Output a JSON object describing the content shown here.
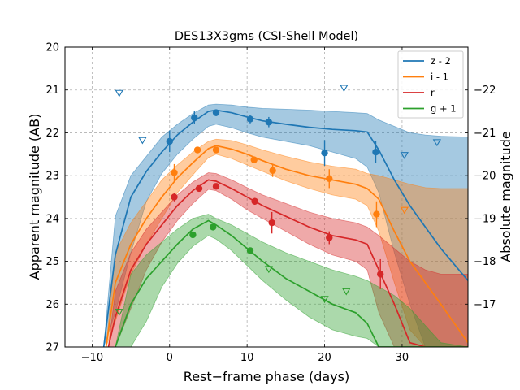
{
  "chart_data": {
    "type": "line",
    "title": "DES13X3gms (CSI-Shell Model)",
    "xlabel": "Rest−frame phase (days)",
    "ylabel": "Apparent magnitude (AB)",
    "ylabel_right": "Absolute magnitude",
    "xlim": [
      -13.5,
      38.5
    ],
    "ylim": [
      27,
      20
    ],
    "y_inverted": true,
    "right_ylim": [
      -16.0,
      -23.0
    ],
    "x_ticks": [
      -10,
      0,
      10,
      20,
      30
    ],
    "y_ticks": [
      20,
      21,
      22,
      23,
      24,
      25,
      26,
      27
    ],
    "right_y_ticks": [
      -22,
      -21,
      -20,
      -19,
      -18,
      -17
    ],
    "grid": true,
    "legend_position": "top-right",
    "series": [
      {
        "name": "z - 2",
        "color": "#1f77b4",
        "model_x": [
          -8.5,
          -7,
          -5,
          -3,
          -1,
          1,
          3,
          5,
          6,
          8,
          10,
          12,
          15,
          18,
          21,
          24,
          25.5,
          27,
          29,
          31,
          33,
          35,
          38.5
        ],
        "model_y": [
          27.0,
          24.85,
          23.5,
          22.9,
          22.45,
          22.05,
          21.75,
          21.5,
          21.47,
          21.53,
          21.63,
          21.72,
          21.8,
          21.87,
          21.92,
          21.95,
          21.98,
          22.4,
          23.1,
          23.7,
          24.2,
          24.7,
          25.45
        ],
        "band_upper": [
          27.0,
          23.95,
          23.0,
          22.55,
          22.1,
          21.8,
          21.55,
          21.35,
          21.33,
          21.35,
          21.4,
          21.43,
          21.45,
          21.47,
          21.5,
          21.53,
          21.55,
          21.7,
          21.85,
          22.0,
          22.05,
          22.08,
          22.1
        ],
        "band_lower": [
          27.0,
          26.2,
          24.8,
          23.6,
          22.95,
          22.5,
          22.15,
          21.85,
          21.8,
          21.88,
          22.0,
          22.1,
          22.2,
          22.3,
          22.45,
          22.6,
          22.8,
          23.4,
          24.8,
          26.0,
          27.0,
          27.0,
          27.0
        ],
        "points": [
          {
            "x": 0.0,
            "y": 22.2,
            "err": 0.25
          },
          {
            "x": 3.2,
            "y": 21.65,
            "err": 0.15
          },
          {
            "x": 6.0,
            "y": 21.53,
            "err": 0.08
          },
          {
            "x": 10.4,
            "y": 21.68,
            "err": 0.1
          },
          {
            "x": 12.8,
            "y": 21.75,
            "err": 0.12
          },
          {
            "x": 20.0,
            "y": 22.47,
            "err": 0.3
          },
          {
            "x": 26.6,
            "y": 22.45,
            "err": 0.25
          }
        ],
        "upper_limits": [
          {
            "x": -6.5,
            "y": 21.07
          },
          {
            "x": -3.5,
            "y": 22.17
          },
          {
            "x": 22.5,
            "y": 20.95
          },
          {
            "x": 30.3,
            "y": 22.52
          },
          {
            "x": 34.5,
            "y": 22.22
          }
        ]
      },
      {
        "name": "i - 1",
        "color": "#ff7f0e",
        "model_x": [
          -8.2,
          -7,
          -5,
          -3,
          -1,
          1,
          3,
          5,
          6,
          8,
          10,
          12,
          15,
          18,
          21,
          24,
          25.5,
          27,
          29,
          31,
          33,
          35,
          38.5
        ],
        "model_y": [
          27.0,
          25.5,
          24.6,
          24.0,
          23.5,
          23.05,
          22.7,
          22.37,
          22.3,
          22.38,
          22.5,
          22.65,
          22.85,
          23.0,
          23.1,
          23.2,
          23.3,
          23.55,
          24.3,
          25.0,
          25.5,
          26.0,
          26.9
        ],
        "band_upper": [
          27.0,
          24.8,
          24.1,
          23.6,
          23.1,
          22.75,
          22.45,
          22.2,
          22.15,
          22.18,
          22.28,
          22.4,
          22.55,
          22.68,
          22.78,
          22.85,
          22.95,
          23.0,
          23.1,
          23.2,
          23.28,
          23.3,
          23.3
        ],
        "band_lower": [
          27.0,
          26.4,
          25.3,
          24.6,
          24.0,
          23.4,
          22.98,
          22.58,
          22.5,
          22.6,
          22.75,
          22.9,
          23.12,
          23.3,
          23.45,
          23.55,
          23.7,
          24.3,
          25.5,
          26.6,
          27.0,
          27.0,
          27.0
        ],
        "points": [
          {
            "x": 0.6,
            "y": 22.93,
            "err": 0.2
          },
          {
            "x": 3.6,
            "y": 22.4,
            "err": 0.06
          },
          {
            "x": 6.0,
            "y": 22.4,
            "err": 0.06
          },
          {
            "x": 10.9,
            "y": 22.63,
            "err": 0.08
          },
          {
            "x": 13.3,
            "y": 22.88,
            "err": 0.15
          },
          {
            "x": 20.6,
            "y": 23.07,
            "err": 0.22
          },
          {
            "x": 26.7,
            "y": 23.9,
            "err": 0.3
          }
        ],
        "upper_limits": [
          {
            "x": 30.3,
            "y": 23.8
          }
        ]
      },
      {
        "name": "r",
        "color": "#d62728",
        "model_x": [
          -7.9,
          -7,
          -5,
          -3,
          -1,
          1,
          3,
          5,
          6,
          8,
          10,
          12,
          15,
          18,
          21,
          24,
          25.5,
          27,
          29,
          31,
          33,
          35,
          38.5
        ],
        "model_y": [
          27.0,
          26.3,
          25.2,
          24.6,
          24.15,
          23.7,
          23.35,
          23.1,
          23.13,
          23.3,
          23.5,
          23.7,
          23.95,
          24.2,
          24.4,
          24.5,
          24.6,
          25.2,
          26.0,
          26.9,
          27.0,
          27.0,
          27.0
        ],
        "band_upper": [
          27.0,
          25.7,
          24.8,
          24.25,
          23.85,
          23.45,
          23.15,
          22.93,
          22.95,
          23.1,
          23.28,
          23.45,
          23.65,
          23.85,
          24.0,
          24.1,
          24.2,
          24.4,
          24.7,
          25.0,
          25.2,
          25.3,
          25.3
        ],
        "band_lower": [
          27.0,
          27.0,
          26.1,
          25.2,
          24.55,
          24.05,
          23.65,
          23.32,
          23.35,
          23.55,
          23.8,
          24.0,
          24.3,
          24.6,
          24.85,
          25.0,
          25.2,
          26.2,
          27.0,
          27.0,
          27.0,
          27.0,
          27.0
        ],
        "points": [
          {
            "x": 0.6,
            "y": 23.5,
            "err": 0.1
          },
          {
            "x": 3.8,
            "y": 23.3,
            "err": 0.06
          },
          {
            "x": 6.0,
            "y": 23.25,
            "err": 0.06
          },
          {
            "x": 11.0,
            "y": 23.6,
            "err": 0.08
          },
          {
            "x": 13.2,
            "y": 24.1,
            "err": 0.25
          },
          {
            "x": 20.6,
            "y": 24.45,
            "err": 0.15
          },
          {
            "x": 27.2,
            "y": 25.3,
            "err": 0.35
          }
        ],
        "upper_limits": []
      },
      {
        "name": "g + 1",
        "color": "#2ca02c",
        "model_x": [
          -7.0,
          -5,
          -3,
          -1,
          1,
          3,
          5,
          6,
          8,
          10,
          12,
          15,
          18,
          21,
          24,
          25.5,
          27,
          29,
          31,
          33,
          35,
          38.5
        ],
        "model_y": [
          27.0,
          26.0,
          25.4,
          25.0,
          24.6,
          24.25,
          24.05,
          24.15,
          24.4,
          24.7,
          25.0,
          25.4,
          25.7,
          26.0,
          26.2,
          26.45,
          27.0,
          27.0,
          27.0,
          27.0,
          27.0,
          27.0
        ],
        "band_upper": [
          27.0,
          25.3,
          24.85,
          24.55,
          24.25,
          24.0,
          23.9,
          24.0,
          24.15,
          24.35,
          24.55,
          24.8,
          25.0,
          25.2,
          25.35,
          25.45,
          25.6,
          25.8,
          26.1,
          26.5,
          26.9,
          27.0
        ],
        "band_lower": [
          27.0,
          27.0,
          26.4,
          25.6,
          25.05,
          24.65,
          24.4,
          24.48,
          24.75,
          25.1,
          25.45,
          25.9,
          26.3,
          26.6,
          26.75,
          26.8,
          27.0,
          27.0,
          27.0,
          27.0,
          27.0,
          27.0
        ],
        "points": [
          {
            "x": 3.0,
            "y": 24.38,
            "err": 0.05
          },
          {
            "x": 5.6,
            "y": 24.2,
            "err": 0.06
          },
          {
            "x": 10.4,
            "y": 24.75,
            "err": 0.05
          }
        ],
        "upper_limits": [
          {
            "x": -6.5,
            "y": 26.18
          },
          {
            "x": 12.8,
            "y": 25.18
          },
          {
            "x": 20.0,
            "y": 25.88
          },
          {
            "x": 22.8,
            "y": 25.7
          }
        ]
      }
    ]
  }
}
